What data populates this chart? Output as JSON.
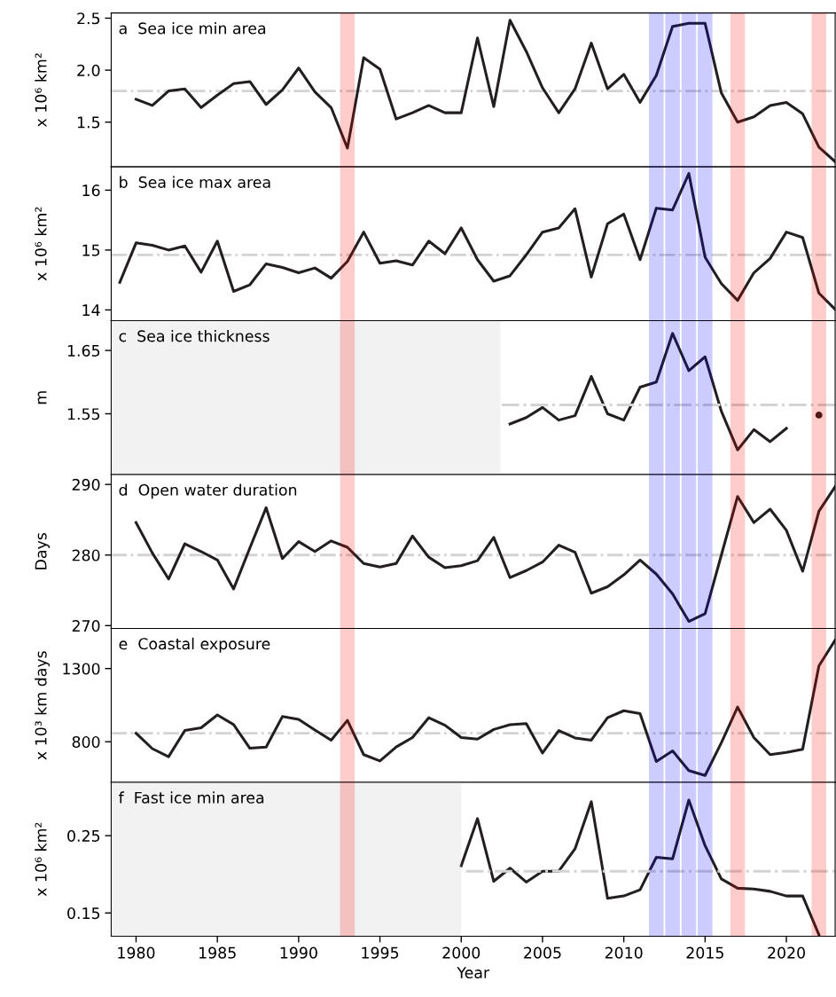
{
  "chart_data": [
    {
      "type": "line",
      "title": "a  Sea ice min area",
      "ylabel": "x 10⁶ km²",
      "xlim": [
        1978.47,
        2023
      ],
      "ylim": [
        1.07,
        2.55
      ],
      "yticks": [
        1.5,
        {
          "value": 2.0,
          "label": "2.0"
        },
        2.5
      ],
      "tick_labels": "y",
      "series": [
        {
          "color": "#231f20",
          "x": [
            1980,
            1981,
            1982,
            1983,
            1984,
            1985,
            1986,
            1987,
            1988,
            1989,
            1990,
            1991,
            1992,
            1993,
            1994,
            1995,
            1996,
            1997,
            1998,
            1999,
            2000,
            2001,
            2002,
            2003,
            2004,
            2005,
            2006,
            2007,
            2008,
            2009,
            2010,
            2011,
            2012,
            2013,
            2014,
            2015,
            2016,
            2017,
            2018,
            2019,
            2020,
            2021,
            2022,
            2023
          ],
          "values": [
            1.72,
            1.66,
            1.8,
            1.82,
            1.64,
            1.76,
            1.87,
            1.89,
            1.67,
            1.81,
            2.02,
            1.79,
            1.64,
            1.25,
            2.12,
            2.01,
            1.53,
            1.59,
            1.66,
            1.59,
            1.59,
            2.31,
            1.65,
            2.48,
            2.18,
            1.83,
            1.59,
            1.82,
            2.26,
            1.82,
            1.96,
            1.69,
            1.95,
            2.42,
            2.45,
            2.45,
            1.78,
            1.5,
            1.55,
            1.66,
            1.69,
            1.58,
            1.26,
            1.12
          ]
        }
      ],
      "ref_lines": [
        {
          "axis": "y",
          "value": 1.8,
          "color": "#d3d3d3",
          "line_style": "dashdot"
        }
      ],
      "bands": [
        {
          "axis": "x",
          "from": 1992.55,
          "to": 1993.45,
          "color": "#ff0000"
        },
        {
          "axis": "x",
          "from": 2011.55,
          "to": 2012.45,
          "color": "#0000ff"
        },
        {
          "axis": "x",
          "from": 2012.55,
          "to": 2013.45,
          "color": "#0000ff"
        },
        {
          "axis": "x",
          "from": 2013.55,
          "to": 2014.45,
          "color": "#0000ff"
        },
        {
          "axis": "x",
          "from": 2014.55,
          "to": 2015.45,
          "color": "#0000ff"
        },
        {
          "axis": "x",
          "from": 2016.55,
          "to": 2017.45,
          "color": "#ff0000"
        },
        {
          "axis": "x",
          "from": 2021.55,
          "to": 2022.45,
          "color": "#ff0000"
        }
      ]
    },
    {
      "type": "line",
      "title": "b  Sea ice max area",
      "ylabel": "x 10⁶ km²",
      "xlim": [
        1978.47,
        2023
      ],
      "ylim": [
        13.82,
        16.39
      ],
      "yticks": [
        14,
        15,
        16
      ],
      "tick_labels": "y",
      "series": [
        {
          "color": "#231f20",
          "x": [
            1979,
            1980,
            1981,
            1982,
            1983,
            1984,
            1985,
            1986,
            1987,
            1988,
            1989,
            1990,
            1991,
            1992,
            1993,
            1994,
            1995,
            1996,
            1997,
            1998,
            1999,
            2000,
            2001,
            2002,
            2003,
            2004,
            2005,
            2006,
            2007,
            2008,
            2009,
            2010,
            2011,
            2012,
            2013,
            2014,
            2015,
            2016,
            2017,
            2018,
            2019,
            2020,
            2021,
            2022,
            2023
          ],
          "values": [
            14.46,
            15.12,
            15.08,
            15.0,
            15.07,
            14.63,
            15.15,
            14.31,
            14.42,
            14.77,
            14.71,
            14.62,
            14.7,
            14.53,
            14.81,
            15.3,
            14.78,
            14.82,
            14.75,
            15.15,
            14.94,
            15.37,
            14.84,
            14.48,
            14.57,
            14.92,
            15.3,
            15.37,
            15.69,
            14.55,
            15.44,
            15.6,
            14.84,
            15.7,
            15.67,
            16.28,
            14.88,
            14.44,
            14.16,
            14.62,
            14.86,
            15.3,
            15.21,
            14.28,
            14.01
          ]
        }
      ],
      "ref_lines": [
        {
          "axis": "y",
          "value": 14.92,
          "color": "#d3d3d3",
          "line_style": "dashdot"
        }
      ],
      "bands": [
        {
          "axis": "x",
          "from": 1992.55,
          "to": 1993.45,
          "color": "#ff0000"
        },
        {
          "axis": "x",
          "from": 2011.55,
          "to": 2012.45,
          "color": "#0000ff"
        },
        {
          "axis": "x",
          "from": 2012.55,
          "to": 2013.45,
          "color": "#0000ff"
        },
        {
          "axis": "x",
          "from": 2013.55,
          "to": 2014.45,
          "color": "#0000ff"
        },
        {
          "axis": "x",
          "from": 2014.55,
          "to": 2015.45,
          "color": "#0000ff"
        },
        {
          "axis": "x",
          "from": 2016.55,
          "to": 2017.45,
          "color": "#ff0000"
        },
        {
          "axis": "x",
          "from": 2021.55,
          "to": 2022.45,
          "color": "#ff0000"
        }
      ]
    },
    {
      "type": "line",
      "title": "c  Sea ice thickness",
      "ylabel": "m",
      "xlim": [
        1978.47,
        2023
      ],
      "ylim": [
        1.454,
        1.697
      ],
      "yticks": [
        1.55,
        1.65
      ],
      "tick_labels": "y",
      "series": [
        {
          "color": "#231f20",
          "x": [
            2003,
            2004,
            2005,
            2006,
            2007,
            2008,
            2009,
            2010,
            2011,
            2012,
            2013,
            2014,
            2015,
            2016,
            2017,
            2018,
            2019,
            2020
          ],
          "values": [
            1.534,
            1.544,
            1.56,
            1.54,
            1.547,
            1.609,
            1.55,
            1.54,
            1.592,
            1.6,
            1.677,
            1.618,
            1.64,
            1.554,
            1.493,
            1.525,
            1.506,
            1.527
          ]
        },
        {
          "type": "scatter",
          "color": "#231f20",
          "x": [
            2022
          ],
          "values": [
            1.548
          ]
        },
        {
          "color": "#d3d3d3",
          "line_style": "dashdot",
          "x": [
            2002.5,
            2023
          ],
          "values": [
            1.564,
            1.564
          ]
        }
      ],
      "bands": [
        {
          "axis": "x",
          "from": 1978.47,
          "to": 2002.41,
          "color": "#bfbfbf"
        },
        {
          "axis": "x",
          "from": 1992.55,
          "to": 1993.45,
          "color": "#ff0000"
        },
        {
          "axis": "x",
          "from": 2011.55,
          "to": 2012.45,
          "color": "#0000ff"
        },
        {
          "axis": "x",
          "from": 2012.55,
          "to": 2013.45,
          "color": "#0000ff"
        },
        {
          "axis": "x",
          "from": 2013.55,
          "to": 2014.45,
          "color": "#0000ff"
        },
        {
          "axis": "x",
          "from": 2014.55,
          "to": 2015.45,
          "color": "#0000ff"
        },
        {
          "axis": "x",
          "from": 2016.55,
          "to": 2017.45,
          "color": "#ff0000"
        },
        {
          "axis": "x",
          "from": 2021.55,
          "to": 2022.45,
          "color": "#ff0000"
        }
      ]
    },
    {
      "type": "line",
      "title": "d  Open water duration",
      "ylabel": "Days",
      "xlim": [
        1978.47,
        2023
      ],
      "ylim": [
        269.6,
        291.4
      ],
      "yticks": [
        270,
        280,
        290
      ],
      "tick_labels": "y",
      "series": [
        {
          "color": "#231f20",
          "x": [
            1980,
            1981,
            1982,
            1983,
            1984,
            1985,
            1986,
            1987,
            1988,
            1989,
            1990,
            1991,
            1992,
            1993,
            1994,
            1995,
            1996,
            1997,
            1998,
            1999,
            2000,
            2001,
            2002,
            2003,
            2004,
            2005,
            2006,
            2007,
            2008,
            2009,
            2010,
            2011,
            2012,
            2013,
            2014,
            2015,
            2016,
            2017,
            2018,
            2019,
            2020,
            2021,
            2022,
            2023
          ],
          "values": [
            284.6,
            280.3,
            276.6,
            281.6,
            280.5,
            279.3,
            275.2,
            281.0,
            286.7,
            279.5,
            281.9,
            280.5,
            282.0,
            281.1,
            278.8,
            278.3,
            278.8,
            282.7,
            279.7,
            278.2,
            278.5,
            279.2,
            282.5,
            276.8,
            277.8,
            279.0,
            281.4,
            280.4,
            274.6,
            275.5,
            277.2,
            279.3,
            277.3,
            274.5,
            270.6,
            271.7,
            280.0,
            288.3,
            284.6,
            286.5,
            283.5,
            277.7,
            286.2,
            289.7
          ]
        }
      ],
      "ref_lines": [
        {
          "axis": "y",
          "value": 280,
          "color": "#d3d3d3",
          "line_style": "dashdot"
        }
      ],
      "bands": [
        {
          "axis": "x",
          "from": 1992.55,
          "to": 1993.45,
          "color": "#ff0000"
        },
        {
          "axis": "x",
          "from": 2011.55,
          "to": 2012.45,
          "color": "#0000ff"
        },
        {
          "axis": "x",
          "from": 2012.55,
          "to": 2013.45,
          "color": "#0000ff"
        },
        {
          "axis": "x",
          "from": 2013.55,
          "to": 2014.45,
          "color": "#0000ff"
        },
        {
          "axis": "x",
          "from": 2014.55,
          "to": 2015.45,
          "color": "#0000ff"
        },
        {
          "axis": "x",
          "from": 2016.55,
          "to": 2017.45,
          "color": "#ff0000"
        },
        {
          "axis": "x",
          "from": 2021.55,
          "to": 2022.45,
          "color": "#ff0000"
        }
      ]
    },
    {
      "type": "line",
      "title": "e  Coastal exposure",
      "ylabel": "x 10³ km days",
      "xlim": [
        1978.47,
        2023
      ],
      "ylim": [
        523,
        1574
      ],
      "yticks": [
        800,
        1300
      ],
      "tick_labels": "y",
      "series": [
        {
          "color": "#231f20",
          "x": [
            1980,
            1981,
            1982,
            1983,
            1984,
            1985,
            1986,
            1987,
            1988,
            1989,
            1990,
            1991,
            1992,
            1993,
            1994,
            1995,
            1996,
            1997,
            1998,
            1999,
            2000,
            2001,
            2002,
            2003,
            2004,
            2005,
            2006,
            2007,
            2008,
            2009,
            2010,
            2011,
            2012,
            2013,
            2014,
            2015,
            2016,
            2017,
            2018,
            2019,
            2020,
            2021,
            2022,
            2023
          ],
          "values": [
            858,
            753,
            698,
            877,
            895,
            983,
            917,
            756,
            764,
            972,
            953,
            880,
            811,
            946,
            712,
            669,
            764,
            829,
            964,
            913,
            829,
            818,
            884,
            917,
            924,
            723,
            877,
            826,
            811,
            964,
            1012,
            993,
            665,
            738,
            603,
            570,
            793,
            1037,
            829,
            712,
            727,
            749,
            1318,
            1494
          ]
        }
      ],
      "ref_lines": [
        {
          "axis": "y",
          "value": 858,
          "color": "#d3d3d3",
          "line_style": "dashdot"
        }
      ],
      "bands": [
        {
          "axis": "x",
          "from": 1992.55,
          "to": 1993.45,
          "color": "#ff0000"
        },
        {
          "axis": "x",
          "from": 2011.55,
          "to": 2012.45,
          "color": "#0000ff"
        },
        {
          "axis": "x",
          "from": 2012.55,
          "to": 2013.45,
          "color": "#0000ff"
        },
        {
          "axis": "x",
          "from": 2013.55,
          "to": 2014.45,
          "color": "#0000ff"
        },
        {
          "axis": "x",
          "from": 2014.55,
          "to": 2015.45,
          "color": "#0000ff"
        },
        {
          "axis": "x",
          "from": 2016.55,
          "to": 2017.45,
          "color": "#ff0000"
        },
        {
          "axis": "x",
          "from": 2021.55,
          "to": 2022.45,
          "color": "#ff0000"
        }
      ]
    },
    {
      "type": "line",
      "title": "f  Fast ice min area",
      "ylabel": "x 10⁶ km²",
      "xlabel": "Year",
      "xlim": [
        1978.47,
        2023
      ],
      "ylim": [
        0.12,
        0.319
      ],
      "yticks": [
        0.15,
        0.25
      ],
      "xticks": [
        1980,
        1985,
        1990,
        1995,
        2000,
        2005,
        2010,
        2015,
        2020
      ],
      "series": [
        {
          "color": "#231f20",
          "x": [
            2000,
            2001,
            2002,
            2003,
            2004,
            2005,
            2006,
            2007,
            2008,
            2009,
            2010,
            2011,
            2012,
            2013,
            2014,
            2015,
            2016,
            2017,
            2018,
            2019,
            2020,
            2021,
            2022
          ],
          "values": [
            0.211,
            0.272,
            0.191,
            0.208,
            0.19,
            0.204,
            0.204,
            0.233,
            0.294,
            0.169,
            0.172,
            0.18,
            0.222,
            0.22,
            0.296,
            0.237,
            0.194,
            0.182,
            0.181,
            0.178,
            0.172,
            0.172,
            0.122
          ]
        },
        {
          "color": "#d3d3d3",
          "line_style": "dashdot",
          "x": [
            2000.3,
            2023
          ],
          "values": [
            0.204,
            0.204
          ]
        }
      ],
      "bands": [
        {
          "axis": "x",
          "from": 1978.47,
          "to": 2000.0,
          "color": "#bfbfbf"
        },
        {
          "axis": "x",
          "from": 1992.55,
          "to": 1993.45,
          "color": "#ff0000"
        },
        {
          "axis": "x",
          "from": 2011.55,
          "to": 2012.45,
          "color": "#0000ff"
        },
        {
          "axis": "x",
          "from": 2012.55,
          "to": 2013.45,
          "color": "#0000ff"
        },
        {
          "axis": "x",
          "from": 2013.55,
          "to": 2014.45,
          "color": "#0000ff"
        },
        {
          "axis": "x",
          "from": 2014.55,
          "to": 2015.45,
          "color": "#0000ff"
        },
        {
          "axis": "x",
          "from": 2016.55,
          "to": 2017.45,
          "color": "#ff0000"
        },
        {
          "axis": "x",
          "from": 2021.55,
          "to": 2022.45,
          "color": "#ff0000"
        }
      ]
    }
  ]
}
